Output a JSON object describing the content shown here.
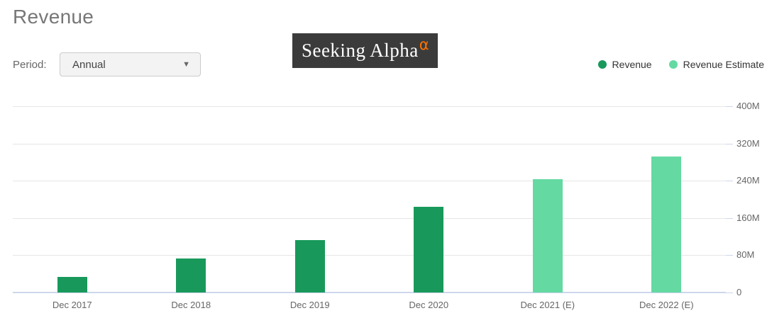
{
  "page": {
    "title": "Revenue"
  },
  "period": {
    "label": "Period:",
    "selected_option": "Annual",
    "dropdown_arrow": "▼"
  },
  "watermark": {
    "text": "Seeking Alpha",
    "alpha_symbol": "α",
    "background": "#3b3b3b",
    "text_color": "#ffffff",
    "alpha_color": "#ff7200"
  },
  "colors": {
    "revenue": "#18995b",
    "revenue_estimate": "#65d9a2",
    "gridline": "#e6e6e6",
    "axis_line": "#ccd6eb",
    "axis_text": "#666666",
    "legend_text": "#333333",
    "title_text": "#777777"
  },
  "chart_data": {
    "type": "bar",
    "title": "Revenue",
    "categories": [
      "Dec 2017",
      "Dec 2018",
      "Dec 2019",
      "Dec 2020",
      "Dec 2021 (E)",
      "Dec 2022 (E)"
    ],
    "series": [
      {
        "name": "Revenue",
        "color": "#18995b",
        "values": [
          34,
          73,
          112,
          184,
          null,
          null
        ]
      },
      {
        "name": "Revenue Estimate",
        "color": "#65d9a2",
        "values": [
          null,
          null,
          null,
          null,
          244,
          292
        ]
      }
    ],
    "xlabel": "",
    "ylabel": "",
    "ylim": [
      0,
      400
    ],
    "yticks": [
      0,
      80,
      160,
      240,
      320,
      400
    ],
    "ytick_labels": [
      "0",
      "80M",
      "160M",
      "240M",
      "320M",
      "400M"
    ],
    "yaxis_side": "right",
    "grid": true,
    "legend_position": "top-right"
  }
}
